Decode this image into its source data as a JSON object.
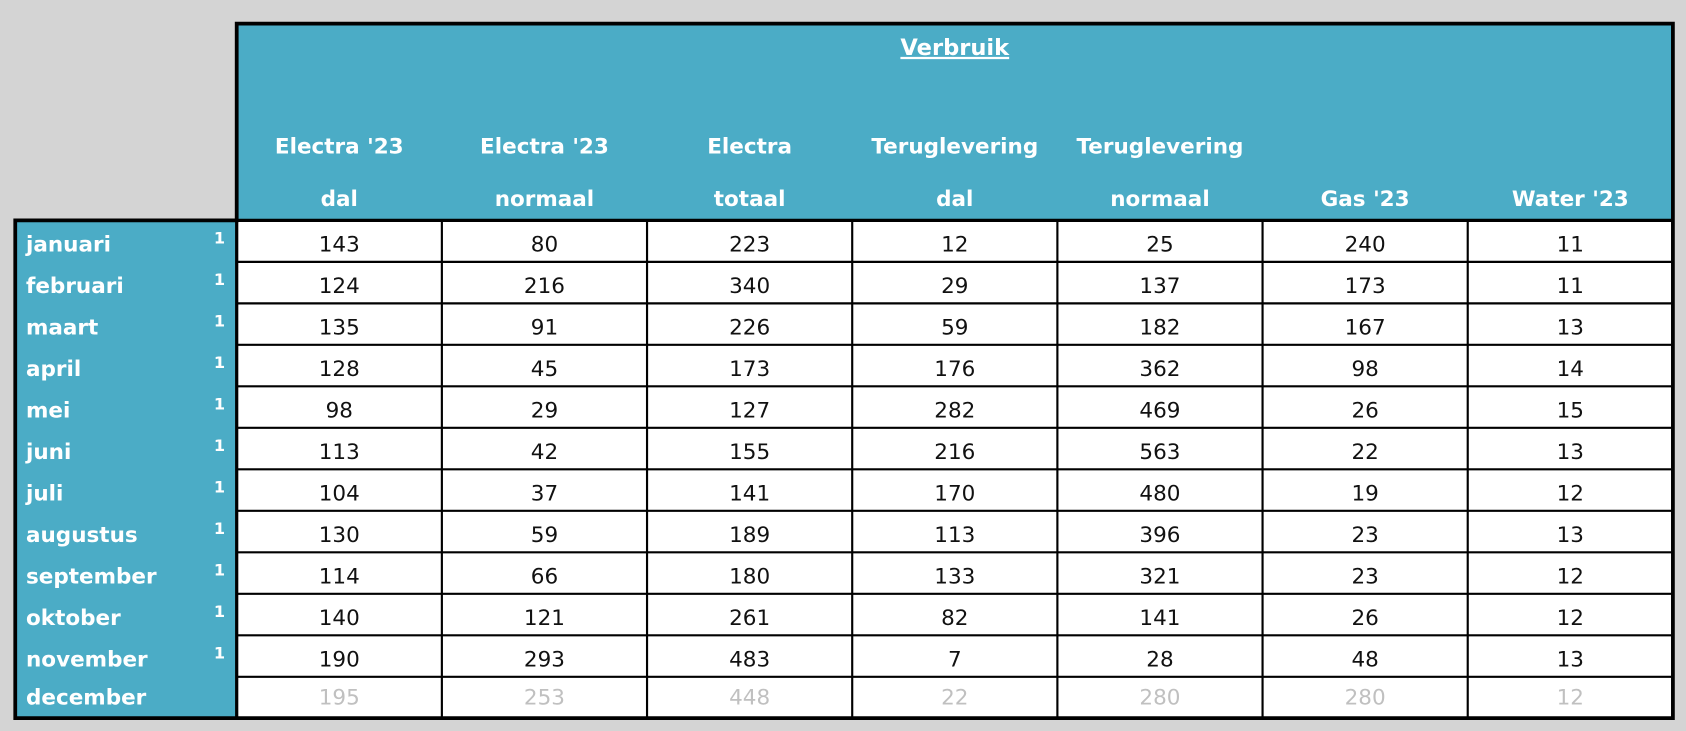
{
  "header": {
    "title": "Verbruik",
    "columns": [
      [
        "Electra '23",
        "dal"
      ],
      [
        "Electra '23",
        "normaal"
      ],
      [
        "Electra",
        "totaal"
      ],
      [
        "Teruglevering",
        "dal"
      ],
      [
        "Teruglevering",
        "normaal"
      ],
      [
        "Gas '23"
      ],
      [
        "Water '23"
      ]
    ]
  },
  "table": {
    "rows": [
      {
        "label": "januari",
        "marker": "1",
        "values": [
          "143",
          "80",
          "223",
          "12",
          "25",
          "240",
          "11"
        ]
      },
      {
        "label": "februari",
        "marker": "1",
        "values": [
          "124",
          "216",
          "340",
          "29",
          "137",
          "173",
          "11"
        ]
      },
      {
        "label": "maart",
        "marker": "1",
        "values": [
          "135",
          "91",
          "226",
          "59",
          "182",
          "167",
          "13"
        ]
      },
      {
        "label": "april",
        "marker": "1",
        "values": [
          "128",
          "45",
          "173",
          "176",
          "362",
          "98",
          "14"
        ]
      },
      {
        "label": "mei",
        "marker": "1",
        "values": [
          "98",
          "29",
          "127",
          "282",
          "469",
          "26",
          "15"
        ]
      },
      {
        "label": "juni",
        "marker": "1",
        "values": [
          "113",
          "42",
          "155",
          "216",
          "563",
          "22",
          "13"
        ]
      },
      {
        "label": "juli",
        "marker": "1",
        "values": [
          "104",
          "37",
          "141",
          "170",
          "480",
          "19",
          "12"
        ]
      },
      {
        "label": "augustus",
        "marker": "1",
        "values": [
          "130",
          "59",
          "189",
          "113",
          "396",
          "23",
          "13"
        ]
      },
      {
        "label": "september",
        "marker": "1",
        "values": [
          "114",
          "66",
          "180",
          "133",
          "321",
          "23",
          "12"
        ]
      },
      {
        "label": "oktober",
        "marker": "1",
        "values": [
          "140",
          "121",
          "261",
          "82",
          "141",
          "26",
          "12"
        ]
      },
      {
        "label": "november",
        "marker": "1",
        "values": [
          "190",
          "293",
          "483",
          "7",
          "28",
          "48",
          "13"
        ]
      },
      {
        "label": "december",
        "values": [
          "195",
          "253",
          "448",
          "22",
          "280",
          "280",
          "12"
        ]
      }
    ]
  }
}
